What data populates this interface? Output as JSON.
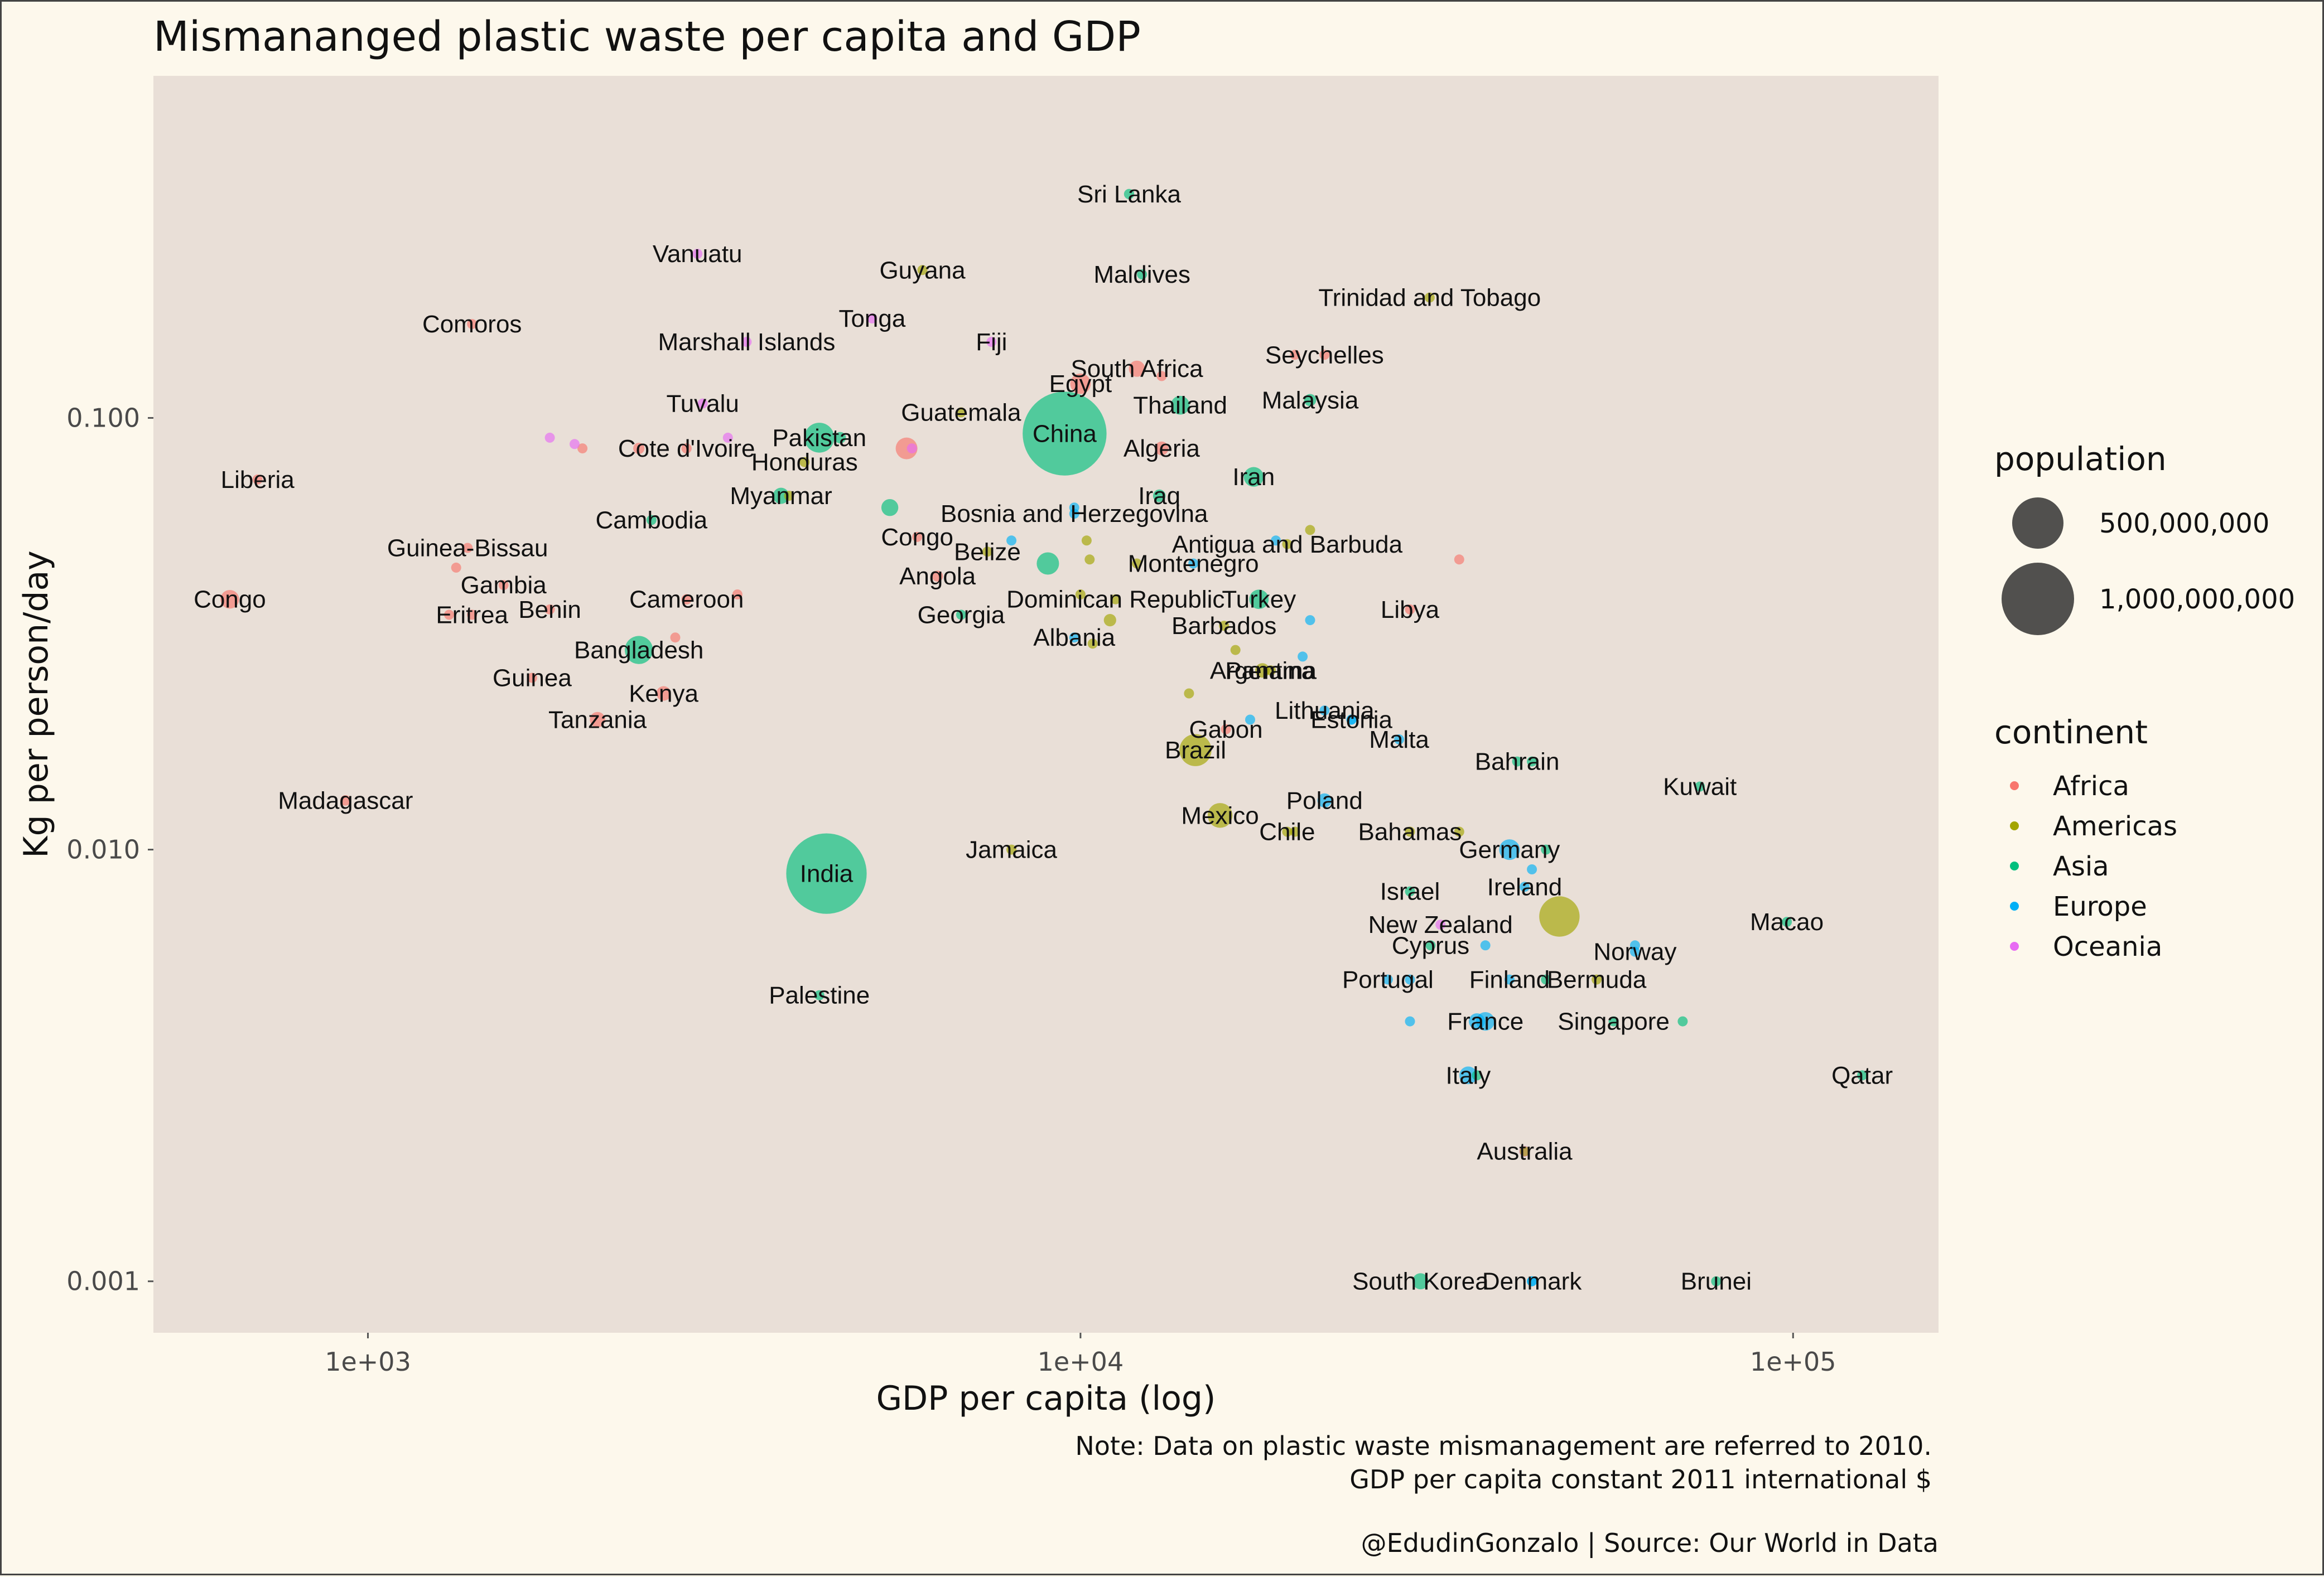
{
  "chart_data": {
    "type": "scatter",
    "title": "Mismananged plastic waste per capita and GDP",
    "xlabel": "GDP per capita (log)",
    "ylabel": "Kg per person/day",
    "x_scale": "log",
    "y_scale": "log",
    "xlim": [
      500,
      160000
    ],
    "ylim": [
      0.00076,
      0.62
    ],
    "x_ticks": [
      {
        "value": 1000,
        "label": "1e+03"
      },
      {
        "value": 10000,
        "label": "1e+04"
      },
      {
        "value": 100000,
        "label": "1e+05"
      }
    ],
    "y_ticks": [
      {
        "value": 0.001,
        "label": "0.001"
      },
      {
        "value": 0.01,
        "label": "0.010"
      },
      {
        "value": 0.1,
        "label": "0.100"
      }
    ],
    "grid": false,
    "panel_background": "#e9dfd7",
    "legend_population": {
      "title": "population",
      "placement": "right",
      "entries": [
        {
          "value": 500000000,
          "label": "500,000,000"
        },
        {
          "value": 1000000000,
          "label": "1,000,000,000"
        }
      ]
    },
    "legend_continent": {
      "title": "continent",
      "placement": "right",
      "entries": [
        {
          "name": "Africa",
          "color": "#f8766d"
        },
        {
          "name": "Americas",
          "color": "#a3a500"
        },
        {
          "name": "Asia",
          "color": "#00bf7d"
        },
        {
          "name": "Europe",
          "color": "#00b0f6"
        },
        {
          "name": "Oceania",
          "color": "#e76bf3"
        }
      ]
    },
    "points": [
      {
        "label": "Sri Lanka",
        "continent": "Asia",
        "x": 11700,
        "y": 0.33,
        "pop": 20000000
      },
      {
        "label": "Vanuatu",
        "continent": "Oceania",
        "x": 2900,
        "y": 0.24,
        "pop": 250000
      },
      {
        "label": "Guyana",
        "continent": "Americas",
        "x": 6000,
        "y": 0.22,
        "pop": 780000
      },
      {
        "label": "Maldives",
        "continent": "Asia",
        "x": 12200,
        "y": 0.215,
        "pop": 380000
      },
      {
        "label": "Trinidad and Tobago",
        "continent": "Americas",
        "x": 30900,
        "y": 0.19,
        "pop": 1300000
      },
      {
        "label": "Comoros",
        "continent": "Africa",
        "x": 1400,
        "y": 0.165,
        "pop": 700000
      },
      {
        "label": "Tonga",
        "continent": "Oceania",
        "x": 5100,
        "y": 0.17,
        "pop": 100000
      },
      {
        "label": "Marshall Islands",
        "continent": "Oceania",
        "x": 3400,
        "y": 0.15,
        "pop": 55000
      },
      {
        "label": "Fiji",
        "continent": "Oceania",
        "x": 7500,
        "y": 0.15,
        "pop": 860000
      },
      {
        "label": "South Africa",
        "continent": "Africa",
        "x": 12000,
        "y": 0.13,
        "pop": 50000000
      },
      {
        "label": "Seychelles",
        "continent": "Africa",
        "x": 22000,
        "y": 0.14,
        "pop": 90000
      },
      {
        "label": "Egypt",
        "continent": "Africa",
        "x": 10000,
        "y": 0.12,
        "pop": 80000000
      },
      {
        "label": "Thailand",
        "continent": "Asia",
        "x": 13800,
        "y": 0.107,
        "pop": 67000000
      },
      {
        "label": "Malaysia",
        "continent": "Asia",
        "x": 21000,
        "y": 0.11,
        "pop": 28000000
      },
      {
        "label": "Tuvalu",
        "continent": "Oceania",
        "x": 2950,
        "y": 0.108,
        "pop": 10000
      },
      {
        "label": "Guatemala",
        "continent": "Americas",
        "x": 6800,
        "y": 0.103,
        "pop": 14000000
      },
      {
        "label": "China",
        "continent": "Asia",
        "x": 9500,
        "y": 0.092,
        "pop": 1340000000
      },
      {
        "label": "Pakistan",
        "continent": "Asia",
        "x": 4300,
        "y": 0.09,
        "pop": 170000000
      },
      {
        "label": "Cote d'Ivoire",
        "continent": "Africa",
        "x": 2800,
        "y": 0.085,
        "pop": 20000000
      },
      {
        "label": "Algeria",
        "continent": "Africa",
        "x": 13000,
        "y": 0.085,
        "pop": 36000000
      },
      {
        "label": "Honduras",
        "continent": "Americas",
        "x": 4100,
        "y": 0.079,
        "pop": 8000000
      },
      {
        "label": "Liberia",
        "continent": "Africa",
        "x": 700,
        "y": 0.072,
        "pop": 4000000
      },
      {
        "label": "Iran",
        "continent": "Asia",
        "x": 17500,
        "y": 0.073,
        "pop": 74000000
      },
      {
        "label": "Iraq",
        "continent": "Asia",
        "x": 12900,
        "y": 0.066,
        "pop": 30000000
      },
      {
        "label": "Myanmar",
        "continent": "Asia",
        "x": 3800,
        "y": 0.066,
        "pop": 50000000
      },
      {
        "label": "Cambodia",
        "continent": "Asia",
        "x": 2500,
        "y": 0.058,
        "pop": 14000000
      },
      {
        "label": "Bosnia and Herzegovina",
        "continent": "Europe",
        "x": 9800,
        "y": 0.06,
        "pop": 3800000
      },
      {
        "label": "Congo",
        "continent": "Africa",
        "x": 5900,
        "y": 0.053,
        "pop": 4000000
      },
      {
        "label": "Belize",
        "continent": "Americas",
        "x": 7400,
        "y": 0.049,
        "pop": 320000
      },
      {
        "label": "Antigua and Barbuda",
        "continent": "Americas",
        "x": 19500,
        "y": 0.051,
        "pop": 90000
      },
      {
        "label": "Guinea-Bissau",
        "continent": "Africa",
        "x": 1380,
        "y": 0.05,
        "pop": 1600000
      },
      {
        "label": "Montenegro",
        "continent": "Europe",
        "x": 14400,
        "y": 0.046,
        "pop": 620000
      },
      {
        "label": "Angola",
        "continent": "Africa",
        "x": 6300,
        "y": 0.043,
        "pop": 23000000
      },
      {
        "label": "Congo",
        "continent": "Africa",
        "x": 640,
        "y": 0.038,
        "pop": 66000000
      },
      {
        "label": "Gambia",
        "continent": "Africa",
        "x": 1550,
        "y": 0.041,
        "pop": 1700000
      },
      {
        "label": "Dominican Republic",
        "continent": "Americas",
        "x": 11200,
        "y": 0.038,
        "pop": 10000000
      },
      {
        "label": "Turkey",
        "continent": "Asia",
        "x": 17800,
        "y": 0.038,
        "pop": 72000000
      },
      {
        "label": "Cameroon",
        "continent": "Africa",
        "x": 2800,
        "y": 0.038,
        "pop": 20000000
      },
      {
        "label": "Libya",
        "continent": "Africa",
        "x": 29000,
        "y": 0.036,
        "pop": 6000000
      },
      {
        "label": "Benin",
        "continent": "Africa",
        "x": 1800,
        "y": 0.036,
        "pop": 9500000
      },
      {
        "label": "Eritrea",
        "continent": "Africa",
        "x": 1400,
        "y": 0.035,
        "pop": 3000000
      },
      {
        "label": "Georgia",
        "continent": "Asia",
        "x": 6800,
        "y": 0.035,
        "pop": 4400000
      },
      {
        "label": "Barbados",
        "continent": "Americas",
        "x": 15900,
        "y": 0.033,
        "pop": 280000
      },
      {
        "label": "Albania",
        "continent": "Europe",
        "x": 9800,
        "y": 0.031,
        "pop": 2900000
      },
      {
        "label": "Bangladesh",
        "continent": "Asia",
        "x": 2400,
        "y": 0.029,
        "pop": 150000000
      },
      {
        "label": "Panama",
        "continent": "Americas",
        "x": 18500,
        "y": 0.026,
        "pop": 3600000
      },
      {
        "label": "Argentina",
        "continent": "Americas",
        "x": 18000,
        "y": 0.026,
        "pop": 40000000
      },
      {
        "label": "Guinea",
        "continent": "Africa",
        "x": 1700,
        "y": 0.025,
        "pop": 11000000
      },
      {
        "label": "Kenya",
        "continent": "Africa",
        "x": 2600,
        "y": 0.023,
        "pop": 40000000
      },
      {
        "label": "Lithuania",
        "continent": "Europe",
        "x": 22000,
        "y": 0.021,
        "pop": 3100000
      },
      {
        "label": "Tanzania",
        "continent": "Africa",
        "x": 2100,
        "y": 0.02,
        "pop": 45000000
      },
      {
        "label": "Malta",
        "continent": "Europe",
        "x": 28000,
        "y": 0.018,
        "pop": 410000
      },
      {
        "label": "Gabon",
        "continent": "Africa",
        "x": 16000,
        "y": 0.019,
        "pop": 1600000
      },
      {
        "label": "Brazil",
        "continent": "Americas",
        "x": 14500,
        "y": 0.017,
        "pop": 195000000
      },
      {
        "label": "Estonia",
        "continent": "Europe",
        "x": 24000,
        "y": 0.02,
        "pop": 1300000
      },
      {
        "label": "Bahrain",
        "continent": "Asia",
        "x": 41000,
        "y": 0.016,
        "pop": 1250000
      },
      {
        "label": "Kuwait",
        "continent": "Asia",
        "x": 74000,
        "y": 0.014,
        "pop": 3000000
      },
      {
        "label": "Poland",
        "continent": "Europe",
        "x": 22000,
        "y": 0.013,
        "pop": 38000000
      },
      {
        "label": "Mexico",
        "continent": "Americas",
        "x": 15700,
        "y": 0.012,
        "pop": 117000000
      },
      {
        "label": "Madagascar",
        "continent": "Africa",
        "x": 930,
        "y": 0.013,
        "pop": 21000000
      },
      {
        "label": "Chile",
        "continent": "Americas",
        "x": 19500,
        "y": 0.011,
        "pop": 17000000
      },
      {
        "label": "Bahamas",
        "continent": "Americas",
        "x": 29000,
        "y": 0.011,
        "pop": 360000
      },
      {
        "label": "Germany",
        "continent": "Europe",
        "x": 40000,
        "y": 0.01,
        "pop": 81000000
      },
      {
        "label": "Jamaica",
        "continent": "Americas",
        "x": 8000,
        "y": 0.01,
        "pop": 2700000
      },
      {
        "label": "India",
        "continent": "Asia",
        "x": 4400,
        "y": 0.0088,
        "pop": 1230000000
      },
      {
        "label": "Ireland",
        "continent": "Europe",
        "x": 42000,
        "y": 0.0082,
        "pop": 4600000
      },
      {
        "label": "Israel",
        "continent": "Asia",
        "x": 29000,
        "y": 0.008,
        "pop": 7600000
      },
      {
        "label": "Macao",
        "continent": "Asia",
        "x": 98000,
        "y": 0.0068,
        "pop": 540000
      },
      {
        "label": "New Zealand",
        "continent": "Oceania",
        "x": 32000,
        "y": 0.0067,
        "pop": 4400000
      },
      {
        "label": "Norway",
        "continent": "Europe",
        "x": 60000,
        "y": 0.0058,
        "pop": 4900000
      },
      {
        "label": "Cyprus",
        "continent": "Asia",
        "x": 31000,
        "y": 0.006,
        "pop": 1100000
      },
      {
        "label": "Palestine",
        "continent": "Asia",
        "x": 4300,
        "y": 0.0046,
        "pop": 4000000
      },
      {
        "label": "Portugal",
        "continent": "Europe",
        "x": 27000,
        "y": 0.005,
        "pop": 10600000
      },
      {
        "label": "Finland",
        "continent": "Europe",
        "x": 40000,
        "y": 0.005,
        "pop": 5400000
      },
      {
        "label": "Bermuda",
        "continent": "Americas",
        "x": 53000,
        "y": 0.005,
        "pop": 65000
      },
      {
        "label": "France",
        "continent": "Europe",
        "x": 37000,
        "y": 0.004,
        "pop": 65000000
      },
      {
        "label": "Singapore",
        "continent": "Asia",
        "x": 56000,
        "y": 0.004,
        "pop": 5100000
      },
      {
        "label": "Italy",
        "continent": "Europe",
        "x": 35000,
        "y": 0.003,
        "pop": 60000000
      },
      {
        "label": "Qatar",
        "continent": "Asia",
        "x": 125000,
        "y": 0.003,
        "pop": 1800000
      },
      {
        "label": "Australia",
        "continent": "Oceania",
        "x": 42000,
        "y": 0.002,
        "pop": 22000000
      },
      {
        "label": "South Korea",
        "continent": "Asia",
        "x": 30000,
        "y": 0.001,
        "pop": 49000000
      },
      {
        "label": "Denmark",
        "continent": "Europe",
        "x": 43000,
        "y": 0.001,
        "pop": 5600000
      },
      {
        "label": "Brunei",
        "continent": "Asia",
        "x": 78000,
        "y": 0.001,
        "pop": 400000
      },
      {
        "label": "",
        "continent": "Asia",
        "x": 4600,
        "y": 0.09,
        "pop": 25000000
      },
      {
        "label": "",
        "continent": "Africa",
        "x": 5700,
        "y": 0.085,
        "pop": 90000000
      },
      {
        "label": "",
        "continent": "Oceania",
        "x": 5800,
        "y": 0.085,
        "pop": 250000
      },
      {
        "label": "",
        "continent": "Asia",
        "x": 5400,
        "y": 0.062,
        "pop": 55000000
      },
      {
        "label": "",
        "continent": "Asia",
        "x": 9000,
        "y": 0.046,
        "pop": 95000000
      },
      {
        "label": "",
        "continent": "Europe",
        "x": 8000,
        "y": 0.052,
        "pop": 4500000
      },
      {
        "label": "",
        "continent": "Africa",
        "x": 1330,
        "y": 0.045,
        "pop": 1500000
      },
      {
        "label": "",
        "continent": "Africa",
        "x": 2700,
        "y": 0.031,
        "pop": 19000000
      },
      {
        "label": "",
        "continent": "Africa",
        "x": 3300,
        "y": 0.039,
        "pop": 6000000
      },
      {
        "label": "",
        "continent": "Africa",
        "x": 1300,
        "y": 0.035,
        "pop": 1000000
      },
      {
        "label": "",
        "continent": "Africa",
        "x": 2400,
        "y": 0.085,
        "pop": 24000000
      },
      {
        "label": "",
        "continent": "Africa",
        "x": 2000,
        "y": 0.085,
        "pop": 15000000
      },
      {
        "label": "",
        "continent": "Oceania",
        "x": 1950,
        "y": 0.087,
        "pop": 100000
      },
      {
        "label": "",
        "continent": "Oceania",
        "x": 1800,
        "y": 0.09,
        "pop": 100000
      },
      {
        "label": "",
        "continent": "Oceania",
        "x": 3200,
        "y": 0.09,
        "pop": 100000
      },
      {
        "label": "",
        "continent": "Americas",
        "x": 3900,
        "y": 0.066,
        "pop": 6000000
      },
      {
        "label": "",
        "continent": "Americas",
        "x": 10200,
        "y": 0.052,
        "pop": 300000
      },
      {
        "label": "",
        "continent": "Americas",
        "x": 10300,
        "y": 0.047,
        "pop": 1000000
      },
      {
        "label": "",
        "continent": "Americas",
        "x": 12000,
        "y": 0.046,
        "pop": 8000000
      },
      {
        "label": "",
        "continent": "Americas",
        "x": 10000,
        "y": 0.039,
        "pop": 10000000
      },
      {
        "label": "",
        "continent": "Americas",
        "x": 11000,
        "y": 0.034,
        "pop": 29000000
      },
      {
        "label": "",
        "continent": "Americas",
        "x": 16500,
        "y": 0.029,
        "pop": 300000
      },
      {
        "label": "",
        "continent": "Americas",
        "x": 10400,
        "y": 0.03,
        "pop": 100000
      },
      {
        "label": "",
        "continent": "Americas",
        "x": 14200,
        "y": 0.023,
        "pop": 4500000
      },
      {
        "label": "",
        "continent": "Americas",
        "x": 20000,
        "y": 0.011,
        "pop": 3300000
      },
      {
        "label": "",
        "continent": "Americas",
        "x": 34000,
        "y": 0.011,
        "pop": 2000000
      },
      {
        "label": "",
        "continent": "Americas",
        "x": 47000,
        "y": 0.007,
        "pop": 310000000
      },
      {
        "label": "",
        "continent": "Americas",
        "x": 21000,
        "y": 0.055,
        "pop": 100000
      },
      {
        "label": "",
        "continent": "Africa",
        "x": 34000,
        "y": 0.047,
        "pop": 100000
      },
      {
        "label": "",
        "continent": "Africa",
        "x": 13000,
        "y": 0.125,
        "pop": 1200000
      },
      {
        "label": "",
        "continent": "Africa",
        "x": 20000,
        "y": 0.14,
        "pop": 1300000
      },
      {
        "label": "",
        "continent": "Europe",
        "x": 21000,
        "y": 0.034,
        "pop": 2000000
      },
      {
        "label": "",
        "continent": "Europe",
        "x": 20500,
        "y": 0.028,
        "pop": 3000000
      },
      {
        "label": "",
        "continent": "Europe",
        "x": 24000,
        "y": 0.02,
        "pop": 10000000
      },
      {
        "label": "",
        "continent": "Europe",
        "x": 17300,
        "y": 0.02,
        "pop": 1000000
      },
      {
        "label": "",
        "continent": "Europe",
        "x": 18800,
        "y": 0.052,
        "pop": 10000000
      },
      {
        "label": "",
        "continent": "Europe",
        "x": 9800,
        "y": 0.062,
        "pop": 2000000
      },
      {
        "label": "",
        "continent": "Asia",
        "x": 45000,
        "y": 0.01,
        "pop": 1000000
      },
      {
        "label": "",
        "continent": "Asia",
        "x": 43000,
        "y": 0.016,
        "pop": 2500000
      },
      {
        "label": "",
        "continent": "Asia",
        "x": 70000,
        "y": 0.004,
        "pop": 1000000
      },
      {
        "label": "",
        "continent": "Europe",
        "x": 43000,
        "y": 0.009,
        "pop": 1000000
      },
      {
        "label": "",
        "continent": "Europe",
        "x": 37000,
        "y": 0.006,
        "pop": 1000000
      },
      {
        "label": "",
        "continent": "Europe",
        "x": 60000,
        "y": 0.006,
        "pop": 500000
      },
      {
        "label": "",
        "continent": "Europe",
        "x": 29000,
        "y": 0.005,
        "pop": 2000000
      },
      {
        "label": "",
        "continent": "Asia",
        "x": 45000,
        "y": 0.005,
        "pop": 1000000
      },
      {
        "label": "",
        "continent": "Europe",
        "x": 36000,
        "y": 0.004,
        "pop": 50000000
      },
      {
        "label": "",
        "continent": "Europe",
        "x": 29000,
        "y": 0.004,
        "pop": 8000000
      },
      {
        "label": "",
        "continent": "Asia",
        "x": 36000,
        "y": 0.003,
        "pop": 10000000
      },
      {
        "label": "",
        "continent": "Americas",
        "x": 42000,
        "y": 0.002,
        "pop": 8000000
      },
      {
        "label": "",
        "continent": "Europe",
        "x": 43000,
        "y": 0.001,
        "pop": 1000000
      }
    ],
    "notes": [
      "Note: Data on plastic waste mismanagement are referred to 2010.",
      "GDP per capita constant 2011 international $"
    ],
    "source": "@EdudinGonzalo | Source: Our World in Data"
  }
}
